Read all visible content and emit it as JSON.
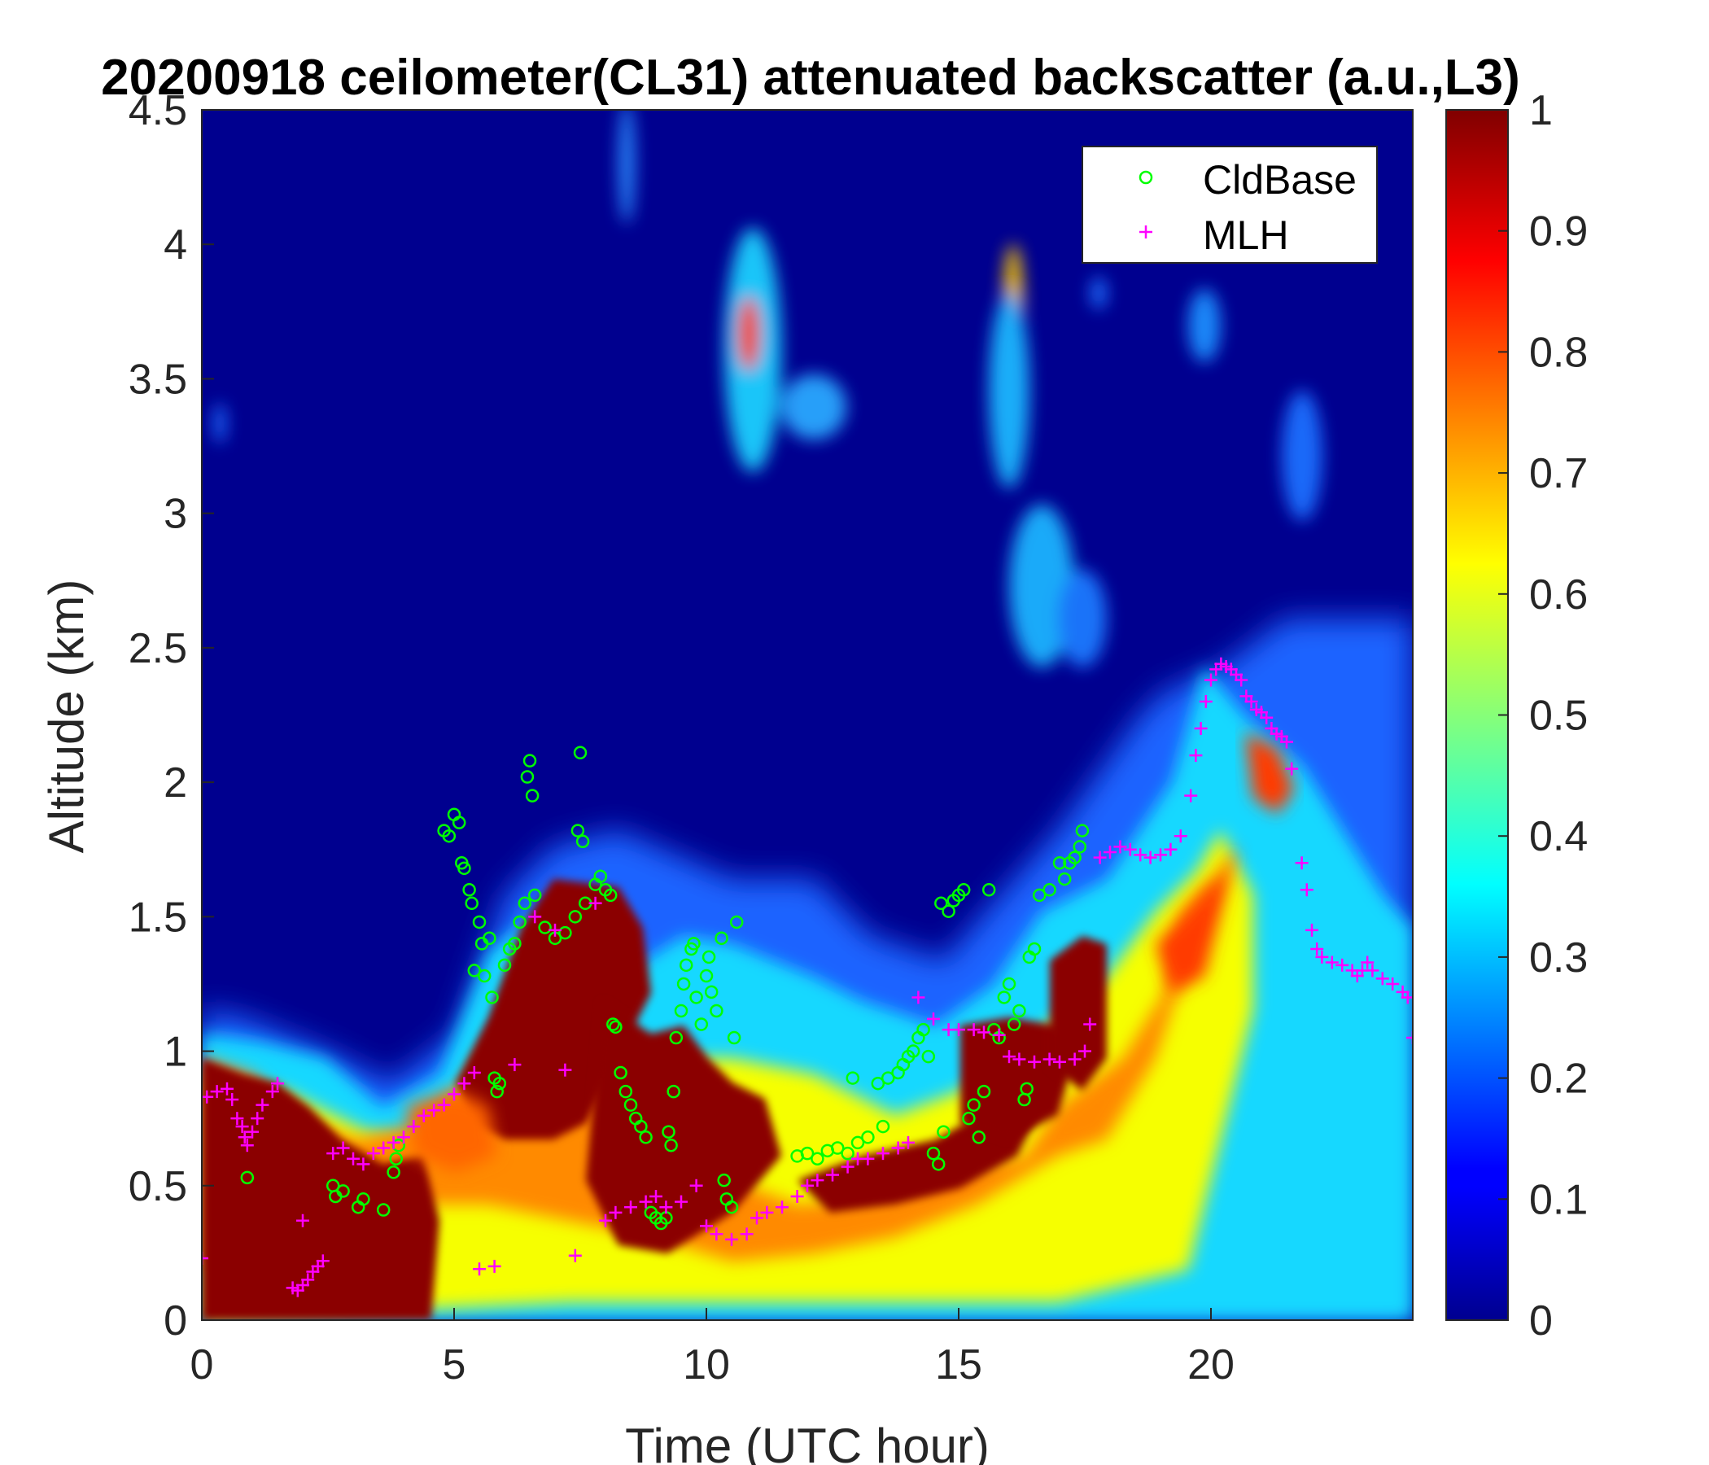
{
  "chart_data": {
    "type": "heatmap",
    "title": "20200918 ceilometer(CL31) attenuated backscatter (a.u.,L3)",
    "xlabel": "Time (UTC hour)",
    "ylabel": "Altitude (km)",
    "xlim": [
      0,
      24
    ],
    "ylim": [
      0,
      4.5
    ],
    "x_ticks": [
      "0",
      "5",
      "10",
      "15",
      "20"
    ],
    "y_ticks": [
      "0",
      "0.5",
      "1",
      "1.5",
      "2",
      "2.5",
      "3",
      "3.5",
      "4",
      "4.5"
    ],
    "colorbar": {
      "colormap": "jet",
      "clim": [
        0,
        1
      ],
      "ticks": [
        "0",
        "0.1",
        "0.2",
        "0.3",
        "0.4",
        "0.5",
        "0.6",
        "0.7",
        "0.8",
        "0.9",
        "1"
      ]
    },
    "legend": {
      "location": "top-right",
      "entries": [
        {
          "label": "CldBase",
          "marker": "o",
          "color": "#00ff00"
        },
        {
          "label": "MLH",
          "marker": "+",
          "color": "#ff00ff"
        }
      ]
    },
    "series": [
      {
        "name": "CldBase",
        "marker": "o",
        "color": "#00ff00",
        "points": [
          [
            0.9,
            0.53
          ],
          [
            2.6,
            0.5
          ],
          [
            2.65,
            0.46
          ],
          [
            2.8,
            0.48
          ],
          [
            3.1,
            0.42
          ],
          [
            3.2,
            0.45
          ],
          [
            3.6,
            0.41
          ],
          [
            3.8,
            0.55
          ],
          [
            3.85,
            0.6
          ],
          [
            3.9,
            0.65
          ],
          [
            4.8,
            1.82
          ],
          [
            4.9,
            1.8
          ],
          [
            5.0,
            1.88
          ],
          [
            5.1,
            1.85
          ],
          [
            5.15,
            1.7
          ],
          [
            5.2,
            1.68
          ],
          [
            5.3,
            1.6
          ],
          [
            5.35,
            1.55
          ],
          [
            5.4,
            1.3
          ],
          [
            5.5,
            1.48
          ],
          [
            5.55,
            1.4
          ],
          [
            5.6,
            1.28
          ],
          [
            5.7,
            1.42
          ],
          [
            5.75,
            1.2
          ],
          [
            5.8,
            0.9
          ],
          [
            5.85,
            0.85
          ],
          [
            5.9,
            0.88
          ],
          [
            6.0,
            1.32
          ],
          [
            6.1,
            1.38
          ],
          [
            6.2,
            1.4
          ],
          [
            6.3,
            1.48
          ],
          [
            6.4,
            1.55
          ],
          [
            6.45,
            2.02
          ],
          [
            6.5,
            2.08
          ],
          [
            6.55,
            1.95
          ],
          [
            6.6,
            1.58
          ],
          [
            6.8,
            1.46
          ],
          [
            7.0,
            1.42
          ],
          [
            7.2,
            1.44
          ],
          [
            7.4,
            1.5
          ],
          [
            7.45,
            1.82
          ],
          [
            7.5,
            2.11
          ],
          [
            7.55,
            1.78
          ],
          [
            7.6,
            1.55
          ],
          [
            7.8,
            1.62
          ],
          [
            7.9,
            1.65
          ],
          [
            8.0,
            1.6
          ],
          [
            8.1,
            1.58
          ],
          [
            8.15,
            1.1
          ],
          [
            8.2,
            1.09
          ],
          [
            8.3,
            0.92
          ],
          [
            8.4,
            0.85
          ],
          [
            8.5,
            0.8
          ],
          [
            8.6,
            0.75
          ],
          [
            8.7,
            0.72
          ],
          [
            8.8,
            0.68
          ],
          [
            8.9,
            0.4
          ],
          [
            9.0,
            0.38
          ],
          [
            9.1,
            0.36
          ],
          [
            9.2,
            0.38
          ],
          [
            9.25,
            0.7
          ],
          [
            9.3,
            0.65
          ],
          [
            9.35,
            0.85
          ],
          [
            9.4,
            1.05
          ],
          [
            9.5,
            1.15
          ],
          [
            9.55,
            1.25
          ],
          [
            9.6,
            1.32
          ],
          [
            9.7,
            1.38
          ],
          [
            9.75,
            1.4
          ],
          [
            9.8,
            1.2
          ],
          [
            9.9,
            1.1
          ],
          [
            10.0,
            1.28
          ],
          [
            10.05,
            1.35
          ],
          [
            10.1,
            1.22
          ],
          [
            10.2,
            1.15
          ],
          [
            10.3,
            1.42
          ],
          [
            10.35,
            0.52
          ],
          [
            10.4,
            0.45
          ],
          [
            10.5,
            0.42
          ],
          [
            10.55,
            1.05
          ],
          [
            10.6,
            1.48
          ],
          [
            11.8,
            0.61
          ],
          [
            12.0,
            0.62
          ],
          [
            12.2,
            0.6
          ],
          [
            12.4,
            0.63
          ],
          [
            12.6,
            0.64
          ],
          [
            12.8,
            0.62
          ],
          [
            12.9,
            0.9
          ],
          [
            13.0,
            0.66
          ],
          [
            13.2,
            0.68
          ],
          [
            13.4,
            0.88
          ],
          [
            13.5,
            0.72
          ],
          [
            13.6,
            0.9
          ],
          [
            13.8,
            0.92
          ],
          [
            13.9,
            0.95
          ],
          [
            14.0,
            0.98
          ],
          [
            14.1,
            1.0
          ],
          [
            14.2,
            1.05
          ],
          [
            14.3,
            1.08
          ],
          [
            14.4,
            0.98
          ],
          [
            14.5,
            0.62
          ],
          [
            14.6,
            0.58
          ],
          [
            14.65,
            1.55
          ],
          [
            14.7,
            0.7
          ],
          [
            14.8,
            1.52
          ],
          [
            14.9,
            1.56
          ],
          [
            15.0,
            1.58
          ],
          [
            15.1,
            1.6
          ],
          [
            15.2,
            0.75
          ],
          [
            15.3,
            0.8
          ],
          [
            15.4,
            0.68
          ],
          [
            15.5,
            0.85
          ],
          [
            15.6,
            1.6
          ],
          [
            15.7,
            1.08
          ],
          [
            15.8,
            1.05
          ],
          [
            15.9,
            1.2
          ],
          [
            16.0,
            1.25
          ],
          [
            16.1,
            1.1
          ],
          [
            16.2,
            1.15
          ],
          [
            16.3,
            0.82
          ],
          [
            16.35,
            0.86
          ],
          [
            16.4,
            1.35
          ],
          [
            16.5,
            1.38
          ],
          [
            16.6,
            1.58
          ],
          [
            16.8,
            1.6
          ],
          [
            17.0,
            1.7
          ],
          [
            17.1,
            1.64
          ],
          [
            17.2,
            1.7
          ],
          [
            17.3,
            1.72
          ],
          [
            17.4,
            1.76
          ],
          [
            17.45,
            1.82
          ]
        ]
      },
      {
        "name": "MLH",
        "marker": "+",
        "color": "#ff00ff",
        "points": [
          [
            0.0,
            0.23
          ],
          [
            0.1,
            0.83
          ],
          [
            0.3,
            0.85
          ],
          [
            0.5,
            0.86
          ],
          [
            0.6,
            0.82
          ],
          [
            0.7,
            0.75
          ],
          [
            0.8,
            0.72
          ],
          [
            0.85,
            0.68
          ],
          [
            0.9,
            0.65
          ],
          [
            1.0,
            0.7
          ],
          [
            1.1,
            0.75
          ],
          [
            1.2,
            0.8
          ],
          [
            1.4,
            0.85
          ],
          [
            1.5,
            0.88
          ],
          [
            1.8,
            0.12
          ],
          [
            1.9,
            0.11
          ],
          [
            2.0,
            0.13
          ],
          [
            2.1,
            0.15
          ],
          [
            2.2,
            0.18
          ],
          [
            2.3,
            0.2
          ],
          [
            2.4,
            0.22
          ],
          [
            2.0,
            0.37
          ],
          [
            2.6,
            0.62
          ],
          [
            2.8,
            0.64
          ],
          [
            3.0,
            0.6
          ],
          [
            3.2,
            0.58
          ],
          [
            3.4,
            0.62
          ],
          [
            3.6,
            0.64
          ],
          [
            3.8,
            0.66
          ],
          [
            4.0,
            0.68
          ],
          [
            4.2,
            0.72
          ],
          [
            4.4,
            0.76
          ],
          [
            4.6,
            0.78
          ],
          [
            4.8,
            0.8
          ],
          [
            5.0,
            0.84
          ],
          [
            5.2,
            0.88
          ],
          [
            5.4,
            0.92
          ],
          [
            5.5,
            0.19
          ],
          [
            5.8,
            0.2
          ],
          [
            6.2,
            0.95
          ],
          [
            6.6,
            1.5
          ],
          [
            7.0,
            1.45
          ],
          [
            7.2,
            0.93
          ],
          [
            7.4,
            0.24
          ],
          [
            7.8,
            1.55
          ],
          [
            8.0,
            0.37
          ],
          [
            8.2,
            0.4
          ],
          [
            8.5,
            0.42
          ],
          [
            8.8,
            0.44
          ],
          [
            9.0,
            0.46
          ],
          [
            9.2,
            0.42
          ],
          [
            9.5,
            0.44
          ],
          [
            9.8,
            0.5
          ],
          [
            10.0,
            0.35
          ],
          [
            10.2,
            0.32
          ],
          [
            10.5,
            0.3
          ],
          [
            10.8,
            0.32
          ],
          [
            11.0,
            0.38
          ],
          [
            11.2,
            0.4
          ],
          [
            11.5,
            0.42
          ],
          [
            11.8,
            0.46
          ],
          [
            12.0,
            0.5
          ],
          [
            12.2,
            0.52
          ],
          [
            12.5,
            0.54
          ],
          [
            12.8,
            0.57
          ],
          [
            13.0,
            0.6
          ],
          [
            13.2,
            0.6
          ],
          [
            13.5,
            0.62
          ],
          [
            13.8,
            0.64
          ],
          [
            14.0,
            0.66
          ],
          [
            14.2,
            1.2
          ],
          [
            14.5,
            1.12
          ],
          [
            14.8,
            1.08
          ],
          [
            15.0,
            1.08
          ],
          [
            15.3,
            1.08
          ],
          [
            15.5,
            1.07
          ],
          [
            15.8,
            1.06
          ],
          [
            16.0,
            0.98
          ],
          [
            16.2,
            0.97
          ],
          [
            16.5,
            0.96
          ],
          [
            16.8,
            0.97
          ],
          [
            17.0,
            0.96
          ],
          [
            17.3,
            0.97
          ],
          [
            17.5,
            1.0
          ],
          [
            17.6,
            1.1
          ],
          [
            17.8,
            1.72
          ],
          [
            18.0,
            1.74
          ],
          [
            18.2,
            1.76
          ],
          [
            18.4,
            1.75
          ],
          [
            18.6,
            1.73
          ],
          [
            18.8,
            1.72
          ],
          [
            19.0,
            1.73
          ],
          [
            19.2,
            1.75
          ],
          [
            19.4,
            1.8
          ],
          [
            19.6,
            1.95
          ],
          [
            19.7,
            2.1
          ],
          [
            19.8,
            2.2
          ],
          [
            19.9,
            2.3
          ],
          [
            20.0,
            2.38
          ],
          [
            20.1,
            2.42
          ],
          [
            20.2,
            2.44
          ],
          [
            20.3,
            2.43
          ],
          [
            20.4,
            2.42
          ],
          [
            20.5,
            2.4
          ],
          [
            20.6,
            2.38
          ],
          [
            20.7,
            2.32
          ],
          [
            20.8,
            2.3
          ],
          [
            20.9,
            2.27
          ],
          [
            21.0,
            2.26
          ],
          [
            21.1,
            2.24
          ],
          [
            21.2,
            2.2
          ],
          [
            21.3,
            2.18
          ],
          [
            21.4,
            2.17
          ],
          [
            21.5,
            2.15
          ],
          [
            21.6,
            2.05
          ],
          [
            21.8,
            1.7
          ],
          [
            21.9,
            1.6
          ],
          [
            22.0,
            1.45
          ],
          [
            22.1,
            1.38
          ],
          [
            22.2,
            1.35
          ],
          [
            22.4,
            1.33
          ],
          [
            22.6,
            1.32
          ],
          [
            22.8,
            1.3
          ],
          [
            22.9,
            1.28
          ],
          [
            23.0,
            1.3
          ],
          [
            23.1,
            1.33
          ],
          [
            23.2,
            1.3
          ],
          [
            23.4,
            1.27
          ],
          [
            23.6,
            1.25
          ],
          [
            23.8,
            1.22
          ],
          [
            23.9,
            1.2
          ],
          [
            24.0,
            1.05
          ]
        ]
      }
    ]
  }
}
